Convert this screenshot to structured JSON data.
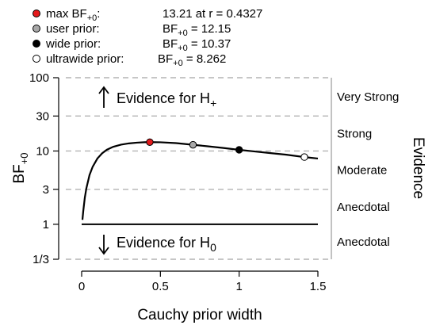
{
  "chart_data": {
    "type": "line",
    "xlabel": "Cauchy prior width",
    "ylabel": {
      "main": "BF",
      "sub": "+0"
    },
    "right_label": "Evidence",
    "x_scale": "linear",
    "y_scale": "log",
    "xlim": [
      0,
      1.5
    ],
    "ylim": [
      0.3333,
      100
    ],
    "x_ticks": [
      {
        "value": 0,
        "label": "0"
      },
      {
        "value": 0.5,
        "label": "0.5"
      },
      {
        "value": 1,
        "label": "1"
      },
      {
        "value": 1.5,
        "label": "1.5"
      }
    ],
    "y_ticks": [
      {
        "value": 0.3333,
        "label": "1/3"
      },
      {
        "value": 1,
        "label": "1"
      },
      {
        "value": 3,
        "label": "3"
      },
      {
        "value": 10,
        "label": "10"
      },
      {
        "value": 30,
        "label": "30"
      },
      {
        "value": 100,
        "label": "100"
      }
    ],
    "dashed_gridlines_y": [
      0.3333,
      3,
      10,
      30,
      100
    ],
    "solid_reference_y": 1,
    "evidence_categories": [
      {
        "label": "Very Strong",
        "y_low": 30,
        "y_high": 100
      },
      {
        "label": "Strong",
        "y_low": 10,
        "y_high": 30
      },
      {
        "label": "Moderate",
        "y_low": 3,
        "y_high": 10
      },
      {
        "label": "Anecdotal",
        "y_low": 1,
        "y_high": 3
      },
      {
        "label": "Anecdotal",
        "y_low": 0.3333,
        "y_high": 1
      }
    ],
    "annotations": [
      {
        "text": "Evidence for H",
        "sub": "+",
        "direction": "up"
      },
      {
        "text": "Evidence for H",
        "sub": "0",
        "direction": "down"
      }
    ],
    "series": [
      {
        "x": [
          0.005,
          0.01,
          0.02,
          0.03,
          0.05,
          0.07,
          0.1,
          0.13,
          0.16,
          0.2,
          0.25,
          0.3,
          0.35,
          0.4,
          0.4327,
          0.5,
          0.6,
          0.7071,
          0.8,
          0.9,
          1.0,
          1.1,
          1.2,
          1.3,
          1.4142,
          1.5
        ],
        "y": [
          1.15,
          1.5,
          2.3,
          3.1,
          4.7,
          6.1,
          7.9,
          9.3,
          10.4,
          11.4,
          12.2,
          12.7,
          13.0,
          13.18,
          13.21,
          13.15,
          12.8,
          12.15,
          11.6,
          11.0,
          10.37,
          9.85,
          9.35,
          8.9,
          8.262,
          7.9
        ],
        "color": "#000000"
      }
    ],
    "points": [
      {
        "name": "max",
        "x": 0.4327,
        "y": 13.21,
        "fill": "#e41a1c"
      },
      {
        "name": "user",
        "x": 0.7071,
        "y": 12.15,
        "fill": "#a8a8a8"
      },
      {
        "name": "wide",
        "x": 1.0,
        "y": 10.37,
        "fill": "#000000"
      },
      {
        "name": "ultrawide",
        "x": 1.4142,
        "y": 8.262,
        "fill": "#ffffff"
      }
    ],
    "legend": {
      "placement": "top",
      "entries": [
        {
          "marker": "#e41a1c",
          "label": "max BF",
          "label_sub": "+0",
          "label_tail": ":",
          "value": "13.21 at r = 0.4327"
        },
        {
          "marker": "#a8a8a8",
          "label": "user prior:",
          "value": "BF",
          "value_sub": "+0",
          "value_tail": " = 12.15"
        },
        {
          "marker": "#000000",
          "label": "wide prior:",
          "value": "BF",
          "value_sub": "+0",
          "value_tail": " = 10.37"
        },
        {
          "marker": "#ffffff",
          "label": "ultrawide prior:",
          "value": "BF",
          "value_sub": "+0",
          "value_tail": " = 8.262"
        }
      ]
    }
  }
}
